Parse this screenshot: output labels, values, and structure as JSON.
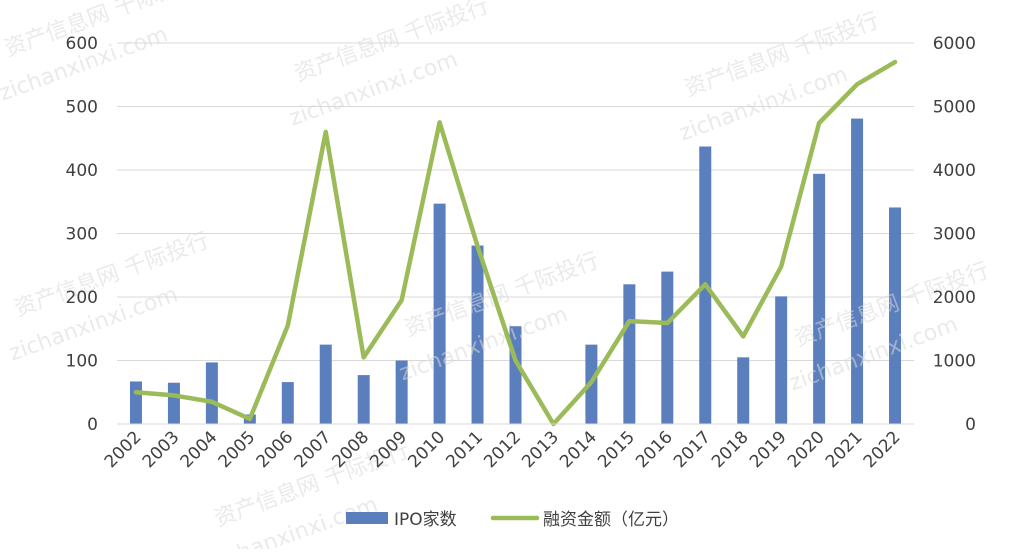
{
  "chart_data": {
    "type": "bar+line",
    "categories": [
      "2002",
      "2003",
      "2004",
      "2005",
      "2006",
      "2007",
      "2008",
      "2009",
      "2010",
      "2011",
      "2012",
      "2013",
      "2014",
      "2015",
      "2016",
      "2017",
      "2018",
      "2019",
      "2020",
      "2021",
      "2022"
    ],
    "series": [
      {
        "name": "IPO家数",
        "type": "bar",
        "axis": "left",
        "color": "#5b7fbd",
        "values": [
          67,
          65,
          97,
          15,
          66,
          125,
          77,
          100,
          347,
          281,
          154,
          0,
          125,
          220,
          240,
          437,
          105,
          201,
          394,
          481,
          341
        ]
      },
      {
        "name": "融资金额（亿元）",
        "type": "line",
        "axis": "right",
        "color": "#9bbb59",
        "values": [
          500,
          450,
          350,
          80,
          1550,
          4600,
          1050,
          1950,
          4750,
          2800,
          1000,
          0,
          660,
          1620,
          1590,
          2200,
          1380,
          2480,
          4740,
          5350,
          5700
        ]
      }
    ],
    "y_left": {
      "ylim": [
        0,
        600
      ],
      "ticks": [
        0,
        100,
        200,
        300,
        400,
        500,
        600
      ]
    },
    "y_right": {
      "ylim": [
        0,
        6000
      ],
      "ticks": [
        0,
        1000,
        2000,
        3000,
        4000,
        5000,
        6000
      ]
    },
    "grid": true,
    "legend_position": "bottom",
    "watermarks": [
      "资产信息网 千际投行",
      "zichanxinxi.com"
    ]
  }
}
